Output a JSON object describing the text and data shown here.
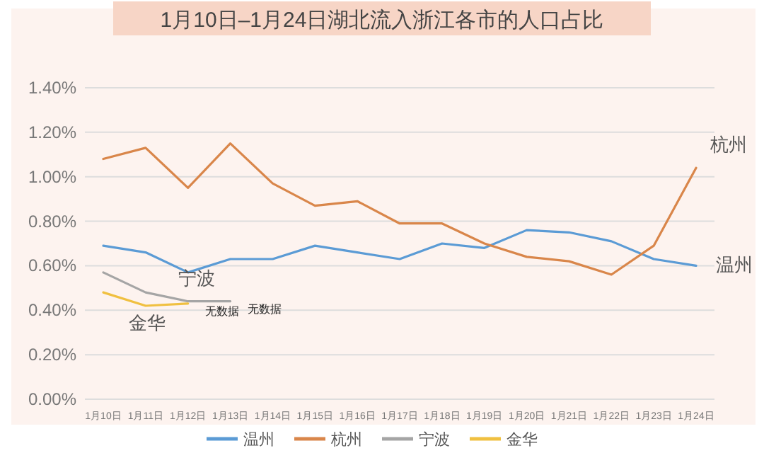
{
  "chart_data": {
    "type": "line",
    "title": "1月10日–1月24日湖北流入浙江各市的人口占比",
    "categories": [
      "1月10日",
      "1月11日",
      "1月12日",
      "1月13日",
      "1月14日",
      "1月15日",
      "1月16日",
      "1月17日",
      "1月18日",
      "1月19日",
      "1月20日",
      "1月21日",
      "1月22日",
      "1月23日",
      "1月24日"
    ],
    "series": [
      {
        "name": "温州",
        "color": "#5b9bd5",
        "values": [
          0.69,
          0.66,
          0.57,
          0.63,
          0.63,
          0.69,
          0.66,
          0.63,
          0.7,
          0.68,
          0.76,
          0.75,
          0.71,
          0.63,
          0.6
        ]
      },
      {
        "name": "杭州",
        "color": "#d9864a",
        "values": [
          1.08,
          1.13,
          0.95,
          1.15,
          0.97,
          0.87,
          0.89,
          0.79,
          0.79,
          0.7,
          0.64,
          0.62,
          0.56,
          0.69,
          1.04
        ]
      },
      {
        "name": "宁波",
        "color": "#a5a5a5",
        "values": [
          0.57,
          0.48,
          0.44,
          0.44,
          null,
          null,
          null,
          null,
          null,
          null,
          null,
          null,
          null,
          null,
          null
        ]
      },
      {
        "name": "金华",
        "color": "#f0c040",
        "values": [
          0.48,
          0.42,
          0.43,
          null,
          null,
          null,
          null,
          null,
          null,
          null,
          null,
          null,
          null,
          null,
          null
        ]
      }
    ],
    "annotations": [
      {
        "text": "无数据",
        "x": "1月13日",
        "y": 0.44
      },
      {
        "text": "无数据",
        "x": "1月12日",
        "y": 0.43
      }
    ],
    "ylim": [
      0,
      1.4
    ],
    "yticks": [
      {
        "value": 0,
        "label": "0.00%"
      },
      {
        "value": 0.2,
        "label": "0.20%"
      },
      {
        "value": 0.4,
        "label": "0.40%"
      },
      {
        "value": 0.6,
        "label": "0.60%"
      },
      {
        "value": 0.8,
        "label": "0.80%"
      },
      {
        "value": 1.0,
        "label": "1.00%"
      },
      {
        "value": 1.2,
        "label": "1.20%"
      },
      {
        "value": 1.4,
        "label": "1.40%"
      }
    ],
    "grid": "y",
    "legend": "bottom"
  }
}
